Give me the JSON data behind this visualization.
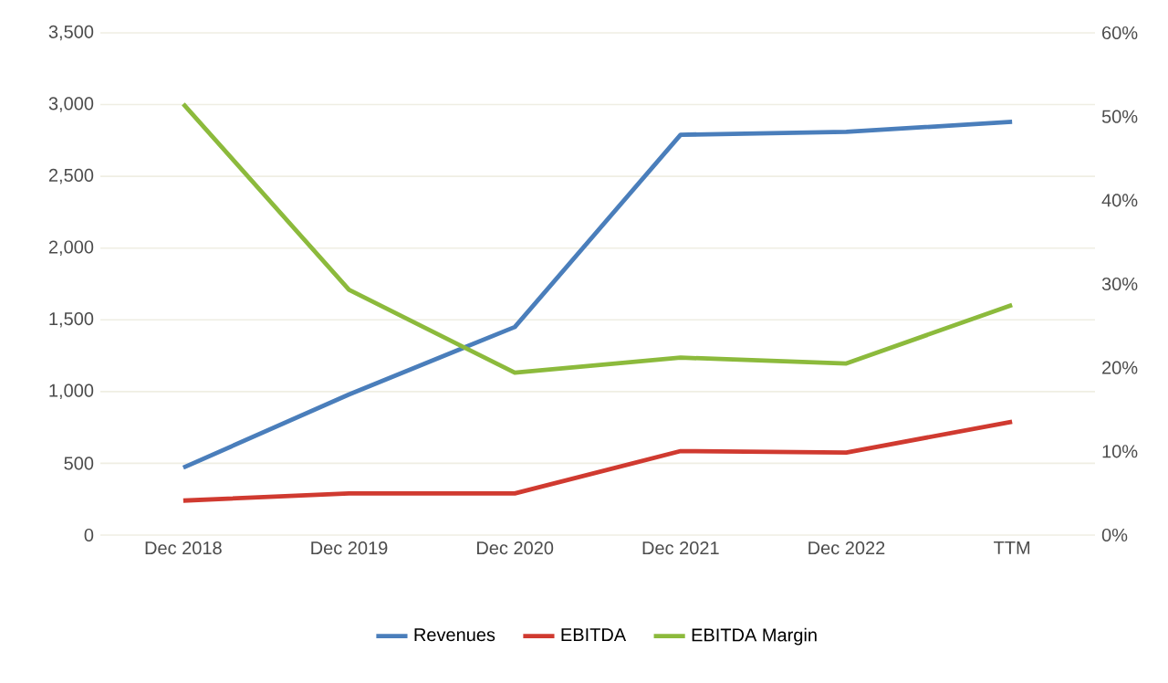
{
  "chart_data": {
    "type": "line",
    "categories": [
      "Dec 2018",
      "Dec 2019",
      "Dec 2020",
      "Dec 2021",
      "Dec 2022",
      "TTM"
    ],
    "series": [
      {
        "name": "Revenues",
        "color": "#4a7ebb",
        "values": [
          470,
          980,
          1450,
          2790,
          2810,
          2880
        ]
      },
      {
        "name": "EBITDA",
        "color": "#d03a30",
        "values": [
          240,
          290,
          290,
          585,
          575,
          790
        ]
      },
      {
        "name": "EBITDA Margin",
        "color": "#8cba3c",
        "axis": "y2",
        "values": [
          51.5,
          29.3,
          19.4,
          21.2,
          20.5,
          27.5
        ]
      }
    ],
    "ylim": [
      0,
      3500
    ],
    "yticks": [
      {
        "value": 0,
        "label": "0"
      },
      {
        "value": 500,
        "label": "500"
      },
      {
        "value": 1000,
        "label": "1,000"
      },
      {
        "value": 1500,
        "label": "1,500"
      },
      {
        "value": 2000,
        "label": "2,000"
      },
      {
        "value": 2500,
        "label": "2,500"
      },
      {
        "value": 3000,
        "label": "3,000"
      },
      {
        "value": 3500,
        "label": "3,500"
      }
    ],
    "y2lim": [
      0,
      60
    ],
    "y2ticks": [
      {
        "value": 0,
        "label": "0%"
      },
      {
        "value": 10,
        "label": "10%"
      },
      {
        "value": 20,
        "label": "20%"
      },
      {
        "value": 30,
        "label": "30%"
      },
      {
        "value": 40,
        "label": "40%"
      },
      {
        "value": 50,
        "label": "50%"
      },
      {
        "value": 60,
        "label": "60%"
      }
    ],
    "grid": "y",
    "legend": "bottom",
    "marker": "none",
    "line_style": "solid"
  }
}
